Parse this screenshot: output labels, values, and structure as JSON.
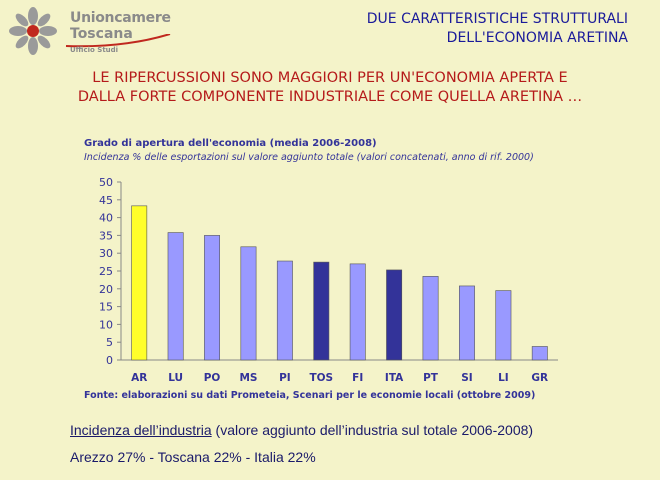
{
  "logo": {
    "line1": "Unioncamere",
    "line2": "Toscana",
    "line3": "Ufficio Studi"
  },
  "header": {
    "line1": "DUE CARATTERISTICHE STRUTTURALI",
    "line2": "DELL'ECONOMIA ARETINA"
  },
  "headline": {
    "line1": "LE RIPERCUSSIONI SONO MAGGIORI PER UN'ECONOMIA APERTA E",
    "line2": "DALLA FORTE COMPONENTE INDUSTRIALE COME QUELLA ARETINA …"
  },
  "notes": {
    "line1_underlined": "Incidenza dell’industria",
    "line1_rest": " (valore aggiunto dell’industria sul totale 2006-2008)",
    "line2": "Arezzo 27% - Toscana 22% - Italia 22%"
  },
  "chart_data": {
    "type": "bar",
    "title": "Grado di apertura dell'economia (media 2006-2008)",
    "subtitle": "Incidenza % delle esportazioni sul valore aggiunto totale (valori concatenati, anno di rif. 2000)",
    "source": "Fonte: elaborazioni su dati Prometeia, Scenari per le economie locali (ottobre 2009)",
    "categories": [
      "AR",
      "LU",
      "PO",
      "MS",
      "PI",
      "TOS",
      "FI",
      "ITA",
      "PT",
      "SI",
      "LI",
      "GR"
    ],
    "values": [
      43.3,
      35.8,
      35.0,
      31.8,
      27.8,
      27.5,
      27.0,
      25.3,
      23.5,
      20.8,
      19.5,
      3.8
    ],
    "bar_colors": [
      "#ffff2a",
      "#9999ff",
      "#9999ff",
      "#9999ff",
      "#9999ff",
      "#333399",
      "#9999ff",
      "#333399",
      "#9999ff",
      "#9999ff",
      "#9999ff",
      "#9999ff"
    ],
    "yticks": [
      0,
      5,
      10,
      15,
      20,
      25,
      30,
      35,
      40,
      45,
      50
    ],
    "ylim": [
      0,
      50
    ],
    "grid": false,
    "legend": "none"
  }
}
